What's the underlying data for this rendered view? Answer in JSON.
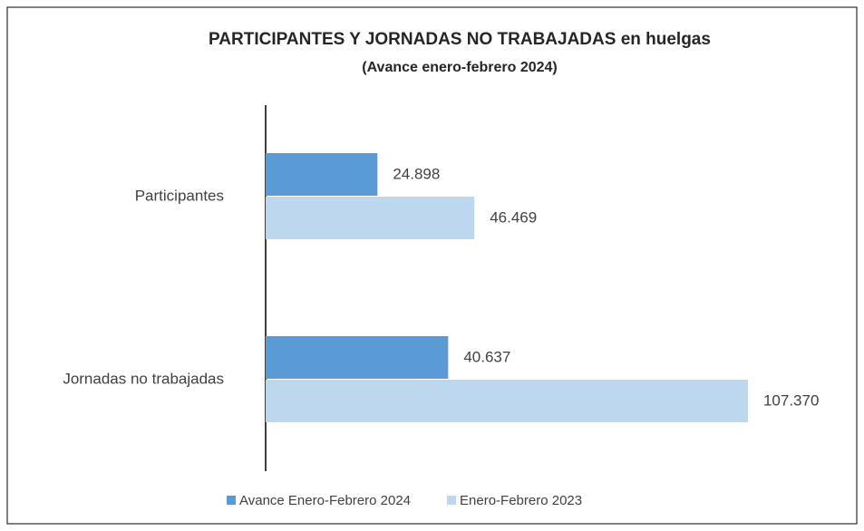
{
  "chart_data": {
    "type": "bar",
    "orientation": "horizontal",
    "title": "PARTICIPANTES  Y JORNADAS NO TRABAJADAS  en huelgas",
    "subtitle": "(Avance enero-febrero 2024)",
    "categories": [
      "Participantes",
      "Jornadas no trabajadas"
    ],
    "series": [
      {
        "name": "Avance Enero-Febrero 2024",
        "color": "#5b9bd5",
        "values": [
          24898,
          40637
        ],
        "value_labels": [
          "24.898",
          "40.637"
        ]
      },
      {
        "name": "Enero-Febrero 2023",
        "color": "#bdd7ee",
        "values": [
          46469,
          107370
        ],
        "value_labels": [
          "46.469",
          "107.370"
        ]
      }
    ],
    "xlim": [
      0,
      110000
    ],
    "legend": "bottom"
  }
}
